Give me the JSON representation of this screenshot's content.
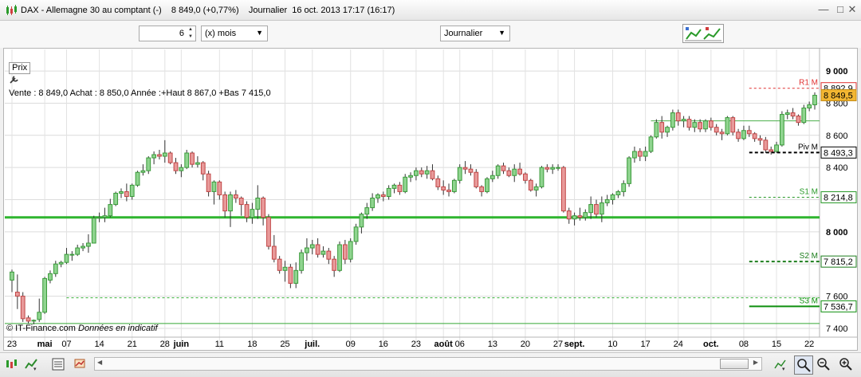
{
  "window": {
    "title": "DAX - Allemagne 30 au comptant (-)    8 849,0 (+0,77%)    Journalier  16 oct. 2013 17:17 (16:17)",
    "minimize": "—",
    "maximize": "□",
    "close": "✕"
  },
  "toolbar": {
    "period_value": "6",
    "period_unit": "(x) mois",
    "interval": "Journalier",
    "indicator_button_icon": "chart-indicators-icon"
  },
  "info": {
    "prix_label": "Prix",
    "quote_line": "Vente : 8 849,0 Achat : 8 850,0 Année :+Haut 8 867,0 +Bas 7 415,0"
  },
  "copyright": {
    "source": "© IT-Finance.com",
    "note": "Données en indicatif"
  },
  "chart_data": {
    "type": "candlestick",
    "ylim": [
      7370,
      9050
    ],
    "y_ticks": [
      {
        "v": 9000,
        "label": "9 000",
        "bold": true
      },
      {
        "v": 8800,
        "label": "8 800",
        "bold": false
      },
      {
        "v": 8600,
        "label": "8 600",
        "bold": false
      },
      {
        "v": 8400,
        "label": "8 400",
        "bold": false
      },
      {
        "v": 8200,
        "label": "8 200",
        "bold": false
      },
      {
        "v": 8000,
        "label": "8 000",
        "bold": true
      },
      {
        "v": 7800,
        "label": "7 800",
        "bold": false
      },
      {
        "v": 7600,
        "label": "7 600",
        "bold": false
      },
      {
        "v": 7400,
        "label": "7 400",
        "bold": false
      }
    ],
    "x_ticks": [
      {
        "i": 0,
        "label": "23",
        "bold": false
      },
      {
        "i": 6,
        "label": "mai",
        "bold": true
      },
      {
        "i": 10,
        "label": "07",
        "bold": false
      },
      {
        "i": 16,
        "label": "14",
        "bold": false
      },
      {
        "i": 22,
        "label": "21",
        "bold": false
      },
      {
        "i": 28,
        "label": "28",
        "bold": false
      },
      {
        "i": 31,
        "label": "juin",
        "bold": true
      },
      {
        "i": 38,
        "label": "11",
        "bold": false
      },
      {
        "i": 44,
        "label": "18",
        "bold": false
      },
      {
        "i": 50,
        "label": "25",
        "bold": false
      },
      {
        "i": 55,
        "label": "juil.",
        "bold": true
      },
      {
        "i": 62,
        "label": "09",
        "bold": false
      },
      {
        "i": 68,
        "label": "16",
        "bold": false
      },
      {
        "i": 74,
        "label": "23",
        "bold": false
      },
      {
        "i": 79,
        "label": "août",
        "bold": true
      },
      {
        "i": 82,
        "label": "06",
        "bold": false
      },
      {
        "i": 88,
        "label": "13",
        "bold": false
      },
      {
        "i": 94,
        "label": "20",
        "bold": false
      },
      {
        "i": 100,
        "label": "27",
        "bold": false
      },
      {
        "i": 103,
        "label": "sept.",
        "bold": true
      },
      {
        "i": 110,
        "label": "10",
        "bold": false
      },
      {
        "i": 116,
        "label": "17",
        "bold": false
      },
      {
        "i": 122,
        "label": "24",
        "bold": false
      },
      {
        "i": 128,
        "label": "oct.",
        "bold": true
      },
      {
        "i": 134,
        "label": "08",
        "bold": false
      },
      {
        "i": 140,
        "label": "15",
        "bold": false
      },
      {
        "i": 146,
        "label": "22",
        "bold": false
      }
    ],
    "total_slots": 148,
    "candles": [
      [
        7700,
        7765,
        7625,
        7750
      ],
      [
        7625,
        7735,
        7520,
        7600
      ],
      [
        7600,
        7625,
        7440,
        7460
      ],
      [
        7465,
        7480,
        7430,
        7445
      ],
      [
        7445,
        7455,
        7425,
        7450
      ],
      [
        7455,
        7585,
        7440,
        7500
      ],
      [
        7500,
        7720,
        7490,
        7710
      ],
      [
        7700,
        7760,
        7680,
        7740
      ],
      [
        7740,
        7820,
        7720,
        7800
      ],
      [
        7800,
        7820,
        7780,
        7810
      ],
      [
        7810,
        7900,
        7800,
        7860
      ],
      [
        7860,
        7880,
        7820,
        7860
      ],
      [
        7860,
        7920,
        7850,
        7900
      ],
      [
        7900,
        7930,
        7880,
        7910
      ],
      [
        7910,
        7985,
        7870,
        7930
      ],
      [
        7930,
        8100,
        7930,
        8085
      ],
      [
        8085,
        8120,
        8060,
        8090
      ],
      [
        8090,
        8150,
        8060,
        8100
      ],
      [
        8100,
        8205,
        8090,
        8170
      ],
      [
        8170,
        8250,
        8160,
        8240
      ],
      [
        8240,
        8270,
        8210,
        8250
      ],
      [
        8250,
        8300,
        8190,
        8220
      ],
      [
        8220,
        8300,
        8200,
        8290
      ],
      [
        8290,
        8380,
        8280,
        8370
      ],
      [
        8370,
        8420,
        8350,
        8380
      ],
      [
        8380,
        8470,
        8360,
        8460
      ],
      [
        8460,
        8500,
        8420,
        8480
      ],
      [
        8480,
        8510,
        8450,
        8470
      ],
      [
        8470,
        8570,
        8430,
        8490
      ],
      [
        8490,
        8500,
        8420,
        8430
      ],
      [
        8430,
        8460,
        8360,
        8380
      ],
      [
        8380,
        8420,
        8340,
        8400
      ],
      [
        8400,
        8510,
        8390,
        8490
      ],
      [
        8490,
        8500,
        8400,
        8420
      ],
      [
        8420,
        8470,
        8400,
        8430
      ],
      [
        8430,
        8440,
        8320,
        8360
      ],
      [
        8360,
        8380,
        8220,
        8250
      ],
      [
        8250,
        8320,
        8170,
        8310
      ],
      [
        8310,
        8320,
        8200,
        8230
      ],
      [
        8230,
        8250,
        8090,
        8130
      ],
      [
        8130,
        8250,
        8030,
        8230
      ],
      [
        8230,
        8260,
        8180,
        8210
      ],
      [
        8210,
        8220,
        8100,
        8170
      ],
      [
        8170,
        8190,
        8060,
        8090
      ],
      [
        8090,
        8180,
        8050,
        8140
      ],
      [
        8140,
        8290,
        8080,
        8210
      ],
      [
        8210,
        8220,
        8040,
        8090
      ],
      [
        8090,
        8110,
        7890,
        7910
      ],
      [
        7910,
        7980,
        7810,
        7830
      ],
      [
        7830,
        7850,
        7740,
        7760
      ],
      [
        7760,
        7820,
        7690,
        7780
      ],
      [
        7780,
        7800,
        7650,
        7680
      ],
      [
        7680,
        7810,
        7650,
        7760
      ],
      [
        7760,
        7890,
        7740,
        7870
      ],
      [
        7870,
        7960,
        7820,
        7900
      ],
      [
        7900,
        7950,
        7860,
        7920
      ],
      [
        7920,
        7960,
        7840,
        7860
      ],
      [
        7860,
        7910,
        7840,
        7880
      ],
      [
        7880,
        7900,
        7800,
        7830
      ],
      [
        7830,
        7850,
        7720,
        7760
      ],
      [
        7760,
        7940,
        7750,
        7920
      ],
      [
        7920,
        7950,
        7800,
        7830
      ],
      [
        7830,
        7960,
        7810,
        7940
      ],
      [
        7940,
        8050,
        7920,
        8030
      ],
      [
        8030,
        8120,
        7990,
        8110
      ],
      [
        8110,
        8180,
        8080,
        8150
      ],
      [
        8150,
        8240,
        8130,
        8210
      ],
      [
        8210,
        8240,
        8180,
        8230
      ],
      [
        8230,
        8250,
        8190,
        8220
      ],
      [
        8220,
        8290,
        8200,
        8270
      ],
      [
        8270,
        8300,
        8240,
        8290
      ],
      [
        8290,
        8310,
        8230,
        8250
      ],
      [
        8250,
        8360,
        8240,
        8340
      ],
      [
        8340,
        8370,
        8310,
        8350
      ],
      [
        8350,
        8400,
        8320,
        8380
      ],
      [
        8380,
        8400,
        8340,
        8360
      ],
      [
        8360,
        8410,
        8330,
        8380
      ],
      [
        8380,
        8420,
        8320,
        8330
      ],
      [
        8330,
        8350,
        8260,
        8280
      ],
      [
        8280,
        8320,
        8230,
        8260
      ],
      [
        8260,
        8300,
        8220,
        8250
      ],
      [
        8250,
        8330,
        8240,
        8320
      ],
      [
        8320,
        8420,
        8300,
        8400
      ],
      [
        8400,
        8440,
        8360,
        8390
      ],
      [
        8390,
        8420,
        8350,
        8370
      ],
      [
        8370,
        8390,
        8270,
        8280
      ],
      [
        8280,
        8290,
        8220,
        8250
      ],
      [
        8250,
        8340,
        8240,
        8330
      ],
      [
        8330,
        8380,
        8310,
        8350
      ],
      [
        8350,
        8420,
        8330,
        8410
      ],
      [
        8410,
        8430,
        8360,
        8380
      ],
      [
        8380,
        8400,
        8340,
        8350
      ],
      [
        8350,
        8420,
        8310,
        8390
      ],
      [
        8390,
        8430,
        8350,
        8360
      ],
      [
        8360,
        8370,
        8300,
        8320
      ],
      [
        8320,
        8330,
        8250,
        8260
      ],
      [
        8260,
        8300,
        8220,
        8280
      ],
      [
        8280,
        8410,
        8270,
        8400
      ],
      [
        8400,
        8420,
        8370,
        8390
      ],
      [
        8390,
        8420,
        8360,
        8400
      ],
      [
        8400,
        8420,
        8380,
        8400
      ],
      [
        8400,
        8410,
        8120,
        8130
      ],
      [
        8130,
        8150,
        8050,
        8080
      ],
      [
        8080,
        8120,
        8040,
        8100
      ],
      [
        8100,
        8150,
        8070,
        8090
      ],
      [
        8090,
        8140,
        8070,
        8120
      ],
      [
        8120,
        8220,
        8080,
        8170
      ],
      [
        8170,
        8200,
        8090,
        8110
      ],
      [
        8110,
        8220,
        8060,
        8180
      ],
      [
        8180,
        8230,
        8160,
        8200
      ],
      [
        8200,
        8240,
        8170,
        8230
      ],
      [
        8230,
        8260,
        8210,
        8250
      ],
      [
        8250,
        8320,
        8220,
        8300
      ],
      [
        8300,
        8470,
        8280,
        8460
      ],
      [
        8460,
        8530,
        8430,
        8500
      ],
      [
        8500,
        8520,
        8440,
        8470
      ],
      [
        8470,
        8530,
        8440,
        8500
      ],
      [
        8500,
        8600,
        8490,
        8590
      ],
      [
        8590,
        8700,
        8580,
        8680
      ],
      [
        8680,
        8720,
        8580,
        8620
      ],
      [
        8620,
        8660,
        8590,
        8650
      ],
      [
        8650,
        8760,
        8630,
        8740
      ],
      [
        8740,
        8760,
        8660,
        8690
      ],
      [
        8690,
        8720,
        8650,
        8700
      ],
      [
        8700,
        8720,
        8630,
        8650
      ],
      [
        8650,
        8700,
        8620,
        8680
      ],
      [
        8680,
        8700,
        8620,
        8640
      ],
      [
        8640,
        8700,
        8620,
        8690
      ],
      [
        8690,
        8710,
        8630,
        8650
      ],
      [
        8650,
        8670,
        8600,
        8620
      ],
      [
        8620,
        8640,
        8570,
        8610
      ],
      [
        8610,
        8720,
        8600,
        8710
      ],
      [
        8710,
        8720,
        8600,
        8620
      ],
      [
        8620,
        8640,
        8560,
        8580
      ],
      [
        8580,
        8660,
        8570,
        8630
      ],
      [
        8630,
        8660,
        8590,
        8610
      ],
      [
        8610,
        8620,
        8560,
        8580
      ],
      [
        8580,
        8600,
        8540,
        8570
      ],
      [
        8570,
        8590,
        8490,
        8510
      ],
      [
        8510,
        8530,
        8480,
        8500
      ],
      [
        8500,
        8560,
        8490,
        8540
      ],
      [
        8540,
        8750,
        8530,
        8730
      ],
      [
        8730,
        8760,
        8700,
        8740
      ],
      [
        8740,
        8770,
        8700,
        8720
      ],
      [
        8720,
        8730,
        8660,
        8680
      ],
      [
        8680,
        8790,
        8670,
        8770
      ],
      [
        8770,
        8810,
        8750,
        8790
      ],
      [
        8790,
        8867,
        8760,
        8849
      ]
    ],
    "levels": [
      {
        "label": "R1 M",
        "value": 8892.9,
        "value_label": "8 892,9",
        "color": "#e03030",
        "style": "dashed-thin",
        "from_slot": 135
      },
      {
        "label": "Piv M",
        "value": 8493.3,
        "value_label": "8 493,3",
        "color": "#000000",
        "style": "dashed-thick",
        "from_slot": 135
      },
      {
        "label": "S1 M",
        "value": 8214.8,
        "value_label": "8 214,8",
        "color": "#2a9a2a",
        "style": "dashed-thin",
        "from_slot": 135
      },
      {
        "label": "S2 M",
        "value": 7815.2,
        "value_label": "7 815,2",
        "color": "#1c7d1c",
        "style": "dashed-thick",
        "from_slot": 135
      },
      {
        "label": "S3 M",
        "value": 7536.7,
        "value_label": "7 536,7",
        "color": "#0e8f0e",
        "style": "solid-thick",
        "from_slot": 135
      }
    ],
    "trend_lines": [
      {
        "value": 8090,
        "color": "#2fb52f",
        "width": 3
      },
      {
        "value": 8690,
        "color": "#4caf4c",
        "width": 1,
        "from_slot": 117
      },
      {
        "value": 7590,
        "color": "#3bb33b",
        "width": 1,
        "dashed": true,
        "from_slot": 10
      },
      {
        "value": 7430,
        "color": "#35a835",
        "width": 1
      }
    ],
    "last_price": {
      "value": 8849.5,
      "label": "8 849,5",
      "color": "#f2b632"
    }
  },
  "footer": {
    "icons": [
      "candles-settings-icon",
      "indicator-list-icon",
      "save-chart-icon",
      "compare-icon",
      "drawing-tools-icon"
    ],
    "right_icons": [
      "zoom-selection-icon",
      "zoom-out-icon",
      "zoom-in-icon"
    ]
  }
}
